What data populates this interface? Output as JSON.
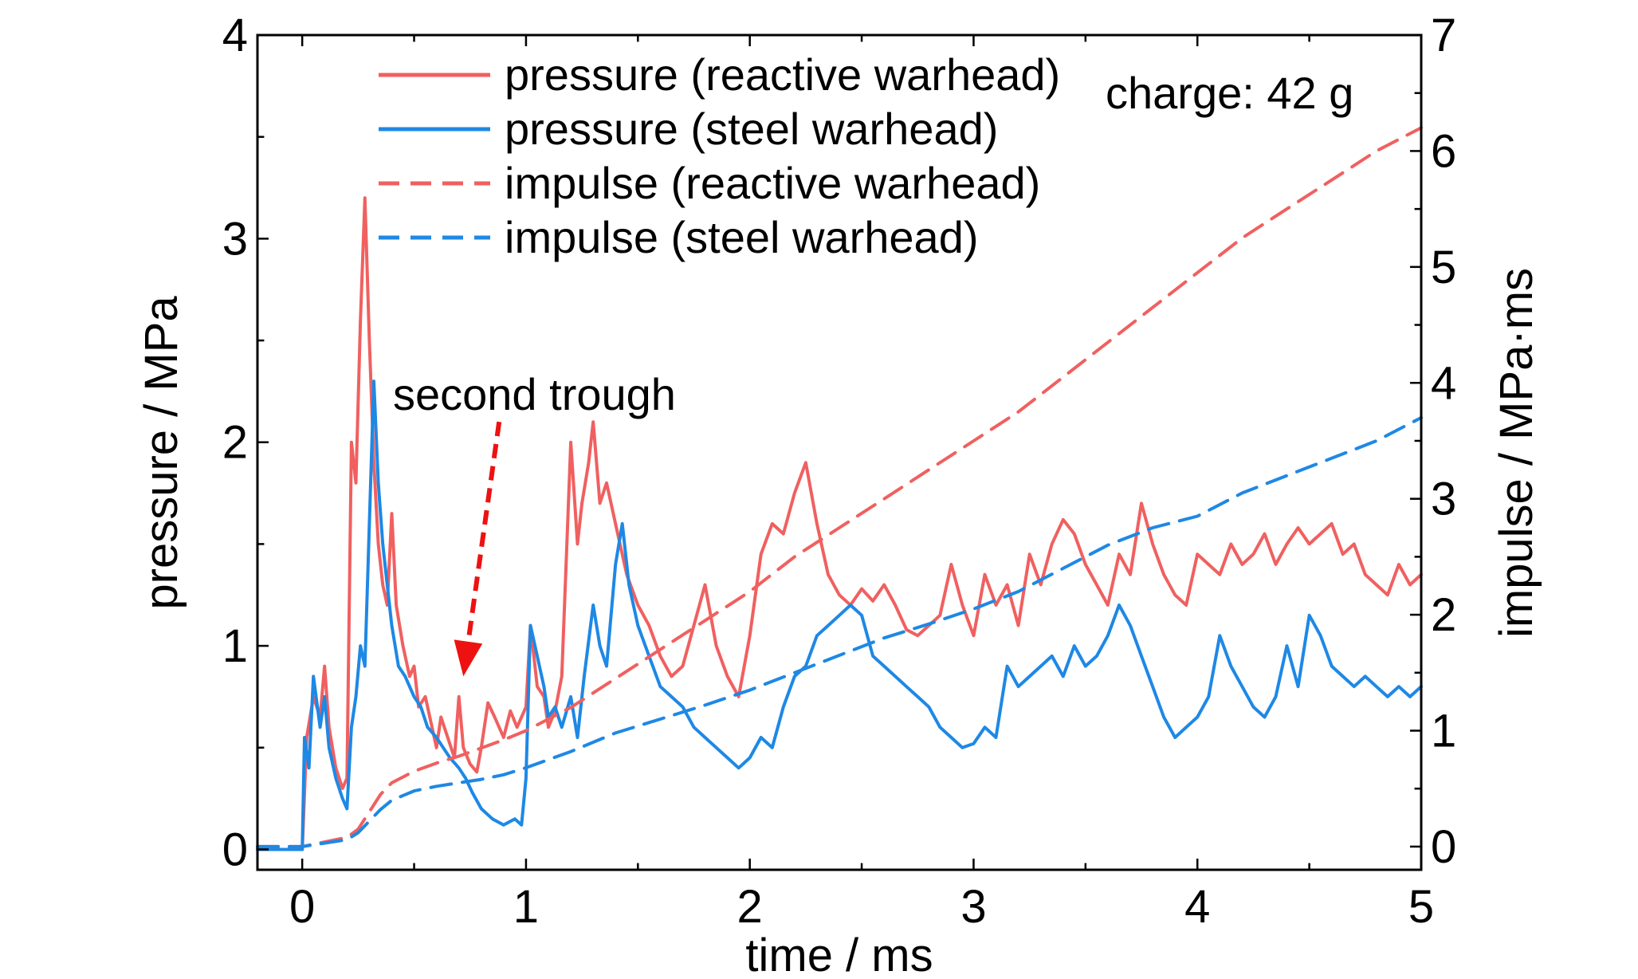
{
  "chart_data": {
    "type": "line",
    "xlabel": "time / ms",
    "ylabel_left": "pressure / MPa",
    "ylabel_right": "impulse / MPa·ms",
    "xlim": [
      -0.2,
      5
    ],
    "ylim_left": [
      -0.1,
      4
    ],
    "ylim_right": [
      -0.2,
      7
    ],
    "x_ticks": [
      "0",
      "1",
      "2",
      "3",
      "4",
      "5"
    ],
    "y_ticks_left": [
      "0",
      "1",
      "2",
      "3",
      "4"
    ],
    "y_ticks_right": [
      "0",
      "1",
      "2",
      "3",
      "4",
      "5",
      "6",
      "7"
    ],
    "grid": false,
    "legend_position": "top-left",
    "annotations": {
      "charge": "charge: 42 g",
      "trough": "second trough"
    },
    "trough_arrow": {
      "from": [
        0.88,
        2.1
      ],
      "to": [
        0.72,
        0.85
      ]
    },
    "colors": {
      "reactive": "#f06060",
      "steel": "#1e88e5",
      "arrow": "#ee1111"
    },
    "series": [
      {
        "name": "pressure (reactive warhead)",
        "axis": "left",
        "style": "solid",
        "color": "#f06060",
        "x": [
          -0.2,
          0.0,
          0.02,
          0.05,
          0.08,
          0.1,
          0.12,
          0.15,
          0.18,
          0.2,
          0.22,
          0.24,
          0.26,
          0.28,
          0.3,
          0.32,
          0.34,
          0.36,
          0.38,
          0.4,
          0.42,
          0.45,
          0.48,
          0.5,
          0.52,
          0.55,
          0.58,
          0.6,
          0.62,
          0.65,
          0.68,
          0.7,
          0.72,
          0.75,
          0.78,
          0.8,
          0.83,
          0.86,
          0.9,
          0.93,
          0.96,
          1.0,
          1.02,
          1.05,
          1.08,
          1.1,
          1.13,
          1.16,
          1.2,
          1.23,
          1.25,
          1.28,
          1.3,
          1.33,
          1.36,
          1.4,
          1.45,
          1.5,
          1.55,
          1.6,
          1.65,
          1.7,
          1.75,
          1.8,
          1.85,
          1.9,
          1.95,
          2.0,
          2.05,
          2.1,
          2.15,
          2.2,
          2.25,
          2.3,
          2.35,
          2.4,
          2.45,
          2.5,
          2.55,
          2.6,
          2.65,
          2.7,
          2.75,
          2.8,
          2.85,
          2.9,
          2.95,
          3.0,
          3.05,
          3.1,
          3.15,
          3.2,
          3.25,
          3.3,
          3.35,
          3.4,
          3.45,
          3.5,
          3.55,
          3.6,
          3.65,
          3.7,
          3.75,
          3.8,
          3.85,
          3.9,
          3.95,
          4.0,
          4.05,
          4.1,
          4.15,
          4.2,
          4.25,
          4.3,
          4.35,
          4.4,
          4.45,
          4.5,
          4.55,
          4.6,
          4.65,
          4.7,
          4.75,
          4.8,
          4.85,
          4.9,
          4.95,
          5.0
        ],
        "y": [
          0.0,
          0.0,
          0.55,
          0.75,
          0.65,
          0.9,
          0.6,
          0.4,
          0.3,
          0.35,
          2.0,
          1.8,
          2.6,
          3.2,
          2.5,
          1.9,
          1.5,
          1.3,
          1.2,
          1.65,
          1.2,
          1.0,
          0.85,
          0.9,
          0.7,
          0.75,
          0.6,
          0.5,
          0.65,
          0.55,
          0.45,
          0.75,
          0.5,
          0.42,
          0.38,
          0.5,
          0.72,
          0.65,
          0.55,
          0.68,
          0.6,
          0.7,
          1.1,
          0.8,
          0.75,
          0.6,
          0.68,
          0.85,
          2.0,
          1.5,
          1.7,
          1.9,
          2.1,
          1.7,
          1.8,
          1.6,
          1.35,
          1.2,
          1.1,
          0.95,
          0.85,
          0.9,
          1.1,
          1.3,
          1.0,
          0.85,
          0.75,
          1.05,
          1.45,
          1.6,
          1.55,
          1.75,
          1.9,
          1.6,
          1.35,
          1.25,
          1.2,
          1.28,
          1.22,
          1.3,
          1.2,
          1.08,
          1.05,
          1.1,
          1.15,
          1.4,
          1.2,
          1.05,
          1.35,
          1.2,
          1.3,
          1.1,
          1.45,
          1.3,
          1.5,
          1.62,
          1.55,
          1.4,
          1.3,
          1.2,
          1.45,
          1.35,
          1.7,
          1.5,
          1.35,
          1.25,
          1.2,
          1.45,
          1.4,
          1.35,
          1.5,
          1.4,
          1.45,
          1.55,
          1.4,
          1.5,
          1.58,
          1.5,
          1.55,
          1.6,
          1.45,
          1.5,
          1.35,
          1.3,
          1.25,
          1.4,
          1.3,
          1.35
        ]
      },
      {
        "name": "pressure (steel warhead)",
        "axis": "left",
        "style": "solid",
        "color": "#1e88e5",
        "x": [
          -0.2,
          0.0,
          0.01,
          0.03,
          0.05,
          0.08,
          0.1,
          0.12,
          0.15,
          0.18,
          0.2,
          0.22,
          0.24,
          0.26,
          0.28,
          0.3,
          0.32,
          0.34,
          0.36,
          0.38,
          0.4,
          0.43,
          0.46,
          0.5,
          0.53,
          0.56,
          0.6,
          0.63,
          0.66,
          0.7,
          0.73,
          0.76,
          0.8,
          0.85,
          0.9,
          0.95,
          0.98,
          1.0,
          1.02,
          1.05,
          1.08,
          1.1,
          1.13,
          1.16,
          1.2,
          1.23,
          1.26,
          1.3,
          1.33,
          1.36,
          1.4,
          1.43,
          1.46,
          1.5,
          1.55,
          1.6,
          1.65,
          1.7,
          1.75,
          1.8,
          1.85,
          1.9,
          1.95,
          2.0,
          2.05,
          2.1,
          2.15,
          2.2,
          2.25,
          2.3,
          2.35,
          2.4,
          2.45,
          2.5,
          2.55,
          2.6,
          2.65,
          2.7,
          2.75,
          2.8,
          2.85,
          2.9,
          2.95,
          3.0,
          3.05,
          3.1,
          3.15,
          3.2,
          3.25,
          3.3,
          3.35,
          3.4,
          3.45,
          3.5,
          3.55,
          3.6,
          3.65,
          3.7,
          3.75,
          3.8,
          3.85,
          3.9,
          3.95,
          4.0,
          4.05,
          4.1,
          4.15,
          4.2,
          4.25,
          4.3,
          4.35,
          4.4,
          4.45,
          4.5,
          4.55,
          4.6,
          4.65,
          4.7,
          4.75,
          4.8,
          4.85,
          4.9,
          4.95,
          5.0
        ],
        "y": [
          0.0,
          0.0,
          0.55,
          0.4,
          0.85,
          0.6,
          0.75,
          0.5,
          0.35,
          0.25,
          0.2,
          0.6,
          0.75,
          1.0,
          0.9,
          1.6,
          2.3,
          1.8,
          1.5,
          1.3,
          1.1,
          0.9,
          0.85,
          0.75,
          0.7,
          0.6,
          0.55,
          0.5,
          0.45,
          0.4,
          0.35,
          0.28,
          0.2,
          0.15,
          0.12,
          0.15,
          0.12,
          0.35,
          1.1,
          0.95,
          0.8,
          0.65,
          0.7,
          0.6,
          0.75,
          0.55,
          0.85,
          1.2,
          1.0,
          0.9,
          1.4,
          1.6,
          1.3,
          1.1,
          0.95,
          0.8,
          0.75,
          0.7,
          0.6,
          0.55,
          0.5,
          0.45,
          0.4,
          0.45,
          0.55,
          0.5,
          0.7,
          0.85,
          0.9,
          1.05,
          1.1,
          1.15,
          1.2,
          1.15,
          0.95,
          0.9,
          0.85,
          0.8,
          0.75,
          0.7,
          0.6,
          0.55,
          0.5,
          0.52,
          0.6,
          0.55,
          0.9,
          0.8,
          0.85,
          0.9,
          0.95,
          0.85,
          1.0,
          0.9,
          0.95,
          1.05,
          1.2,
          1.1,
          0.95,
          0.8,
          0.65,
          0.55,
          0.6,
          0.65,
          0.75,
          1.05,
          0.9,
          0.8,
          0.7,
          0.65,
          0.75,
          1.0,
          0.8,
          1.15,
          1.05,
          0.9,
          0.85,
          0.8,
          0.85,
          0.8,
          0.75,
          0.8,
          0.75,
          0.8
        ]
      },
      {
        "name": "impulse (reactive warhead)",
        "axis": "right",
        "style": "dashed",
        "color": "#f06060",
        "x": [
          -0.2,
          0.0,
          0.2,
          0.25,
          0.3,
          0.35,
          0.4,
          0.5,
          0.6,
          0.7,
          0.8,
          0.9,
          1.0,
          1.2,
          1.4,
          1.6,
          1.8,
          2.0,
          2.2,
          2.4,
          2.6,
          2.8,
          3.0,
          3.2,
          3.4,
          3.6,
          3.8,
          4.0,
          4.2,
          4.4,
          4.6,
          4.8,
          5.0
        ],
        "y": [
          0.0,
          0.0,
          0.08,
          0.15,
          0.3,
          0.45,
          0.55,
          0.65,
          0.72,
          0.78,
          0.85,
          0.92,
          1.0,
          1.2,
          1.45,
          1.7,
          1.95,
          2.2,
          2.5,
          2.75,
          3.0,
          3.25,
          3.5,
          3.75,
          4.05,
          4.35,
          4.65,
          4.95,
          5.25,
          5.5,
          5.75,
          6.0,
          6.2
        ]
      },
      {
        "name": "impulse (steel warhead)",
        "axis": "right",
        "style": "dashed",
        "color": "#1e88e5",
        "x": [
          -0.2,
          0.0,
          0.2,
          0.25,
          0.3,
          0.35,
          0.4,
          0.5,
          0.6,
          0.7,
          0.8,
          0.9,
          1.0,
          1.2,
          1.4,
          1.6,
          1.8,
          2.0,
          2.2,
          2.4,
          2.6,
          2.8,
          3.0,
          3.2,
          3.4,
          3.6,
          3.8,
          4.0,
          4.2,
          4.4,
          4.6,
          4.8,
          5.0
        ],
        "y": [
          0.0,
          0.0,
          0.06,
          0.12,
          0.22,
          0.32,
          0.4,
          0.48,
          0.52,
          0.55,
          0.58,
          0.62,
          0.68,
          0.82,
          0.98,
          1.1,
          1.22,
          1.35,
          1.5,
          1.65,
          1.8,
          1.92,
          2.05,
          2.2,
          2.4,
          2.6,
          2.75,
          2.85,
          3.05,
          3.2,
          3.35,
          3.5,
          3.7
        ]
      }
    ]
  }
}
